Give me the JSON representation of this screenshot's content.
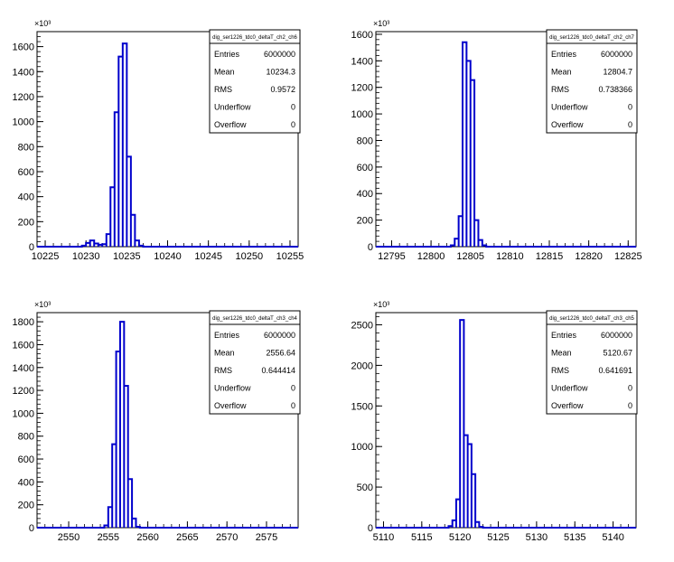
{
  "chart_data": [
    {
      "type": "histogram",
      "stats_title": "dig_ser1226_tdc0_deltaT_ch2_ch6",
      "y_exponent_label": "×10³",
      "xlim": [
        10224,
        10256
      ],
      "ylim": [
        0,
        1720
      ],
      "x_ticks": [
        10225,
        10230,
        10235,
        10240,
        10245,
        10250,
        10255
      ],
      "y_ticks": [
        0,
        200,
        400,
        600,
        800,
        1000,
        1200,
        1400,
        1600
      ],
      "bin_width": 0.5,
      "bins": [
        [
          10229.5,
          8
        ],
        [
          10230,
          30
        ],
        [
          10230.5,
          50
        ],
        [
          10231,
          25
        ],
        [
          10231.5,
          15
        ],
        [
          10232,
          20
        ],
        [
          10232.5,
          100
        ],
        [
          10233,
          475
        ],
        [
          10233.5,
          1075
        ],
        [
          10234,
          1520
        ],
        [
          10234.5,
          1625
        ],
        [
          10235,
          720
        ],
        [
          10235.5,
          255
        ],
        [
          10236,
          50
        ],
        [
          10236.5,
          8
        ]
      ],
      "stats": [
        {
          "label": "Entries",
          "value": "6000000"
        },
        {
          "label": "Mean",
          "value": "10234.3"
        },
        {
          "label": "RMS",
          "value": "0.9572"
        },
        {
          "label": "Underflow",
          "value": "0"
        },
        {
          "label": "Overflow",
          "value": "0"
        }
      ]
    },
    {
      "type": "histogram",
      "stats_title": "dig_ser1226_tdc0_deltaT_ch2_ch7",
      "y_exponent_label": "×10³",
      "xlim": [
        12793,
        12826
      ],
      "ylim": [
        0,
        1620
      ],
      "x_ticks": [
        12795,
        12800,
        12805,
        12810,
        12815,
        12820,
        12825
      ],
      "y_ticks": [
        0,
        200,
        400,
        600,
        800,
        1000,
        1200,
        1400,
        1600
      ],
      "bin_width": 0.5,
      "bins": [
        [
          12802.5,
          10
        ],
        [
          12803,
          60
        ],
        [
          12803.5,
          230
        ],
        [
          12804,
          1540
        ],
        [
          12804.5,
          1400
        ],
        [
          12805,
          1255
        ],
        [
          12805.5,
          200
        ],
        [
          12806,
          50
        ],
        [
          12806.5,
          10
        ]
      ],
      "stats": [
        {
          "label": "Entries",
          "value": "6000000"
        },
        {
          "label": "Mean",
          "value": "12804.7"
        },
        {
          "label": "RMS",
          "value": "0.738366"
        },
        {
          "label": "Underflow",
          "value": "0"
        },
        {
          "label": "Overflow",
          "value": "0"
        }
      ]
    },
    {
      "type": "histogram",
      "stats_title": "dig_ser1226_tdc0_deltaT_ch3_ch4",
      "y_exponent_label": "×10³",
      "xlim": [
        2546,
        2579
      ],
      "ylim": [
        0,
        1880
      ],
      "x_ticks": [
        2550,
        2555,
        2560,
        2565,
        2570,
        2575
      ],
      "y_ticks": [
        0,
        200,
        400,
        600,
        800,
        1000,
        1200,
        1400,
        1600,
        1800
      ],
      "bin_width": 0.5,
      "bins": [
        [
          2554.5,
          20
        ],
        [
          2555,
          180
        ],
        [
          2555.5,
          730
        ],
        [
          2556,
          1540
        ],
        [
          2556.5,
          1800
        ],
        [
          2557,
          1240
        ],
        [
          2557.5,
          425
        ],
        [
          2558,
          80
        ],
        [
          2558.5,
          8
        ]
      ],
      "stats": [
        {
          "label": "Entries",
          "value": "6000000"
        },
        {
          "label": "Mean",
          "value": "2556.64"
        },
        {
          "label": "RMS",
          "value": "0.644414"
        },
        {
          "label": "Underflow",
          "value": "0"
        },
        {
          "label": "Overflow",
          "value": "0"
        }
      ]
    },
    {
      "type": "histogram",
      "stats_title": "dig_ser1226_tdc0_deltaT_ch3_ch5",
      "y_exponent_label": "×10³",
      "xlim": [
        5109,
        5143
      ],
      "ylim": [
        0,
        2650
      ],
      "x_ticks": [
        5110,
        5115,
        5120,
        5125,
        5130,
        5135,
        5140
      ],
      "y_ticks": [
        0,
        500,
        1000,
        1500,
        2000,
        2500
      ],
      "bin_width": 0.5,
      "bins": [
        [
          5118.5,
          20
        ],
        [
          5119,
          90
        ],
        [
          5119.5,
          350
        ],
        [
          5120,
          2560
        ],
        [
          5120.5,
          1140
        ],
        [
          5121,
          1030
        ],
        [
          5121.5,
          660
        ],
        [
          5122,
          70
        ],
        [
          5122.5,
          10
        ]
      ],
      "stats": [
        {
          "label": "Entries",
          "value": "6000000"
        },
        {
          "label": "Mean",
          "value": "5120.67"
        },
        {
          "label": "RMS",
          "value": "0.641691"
        },
        {
          "label": "Underflow",
          "value": "0"
        },
        {
          "label": "Overflow",
          "value": "0"
        }
      ]
    }
  ]
}
